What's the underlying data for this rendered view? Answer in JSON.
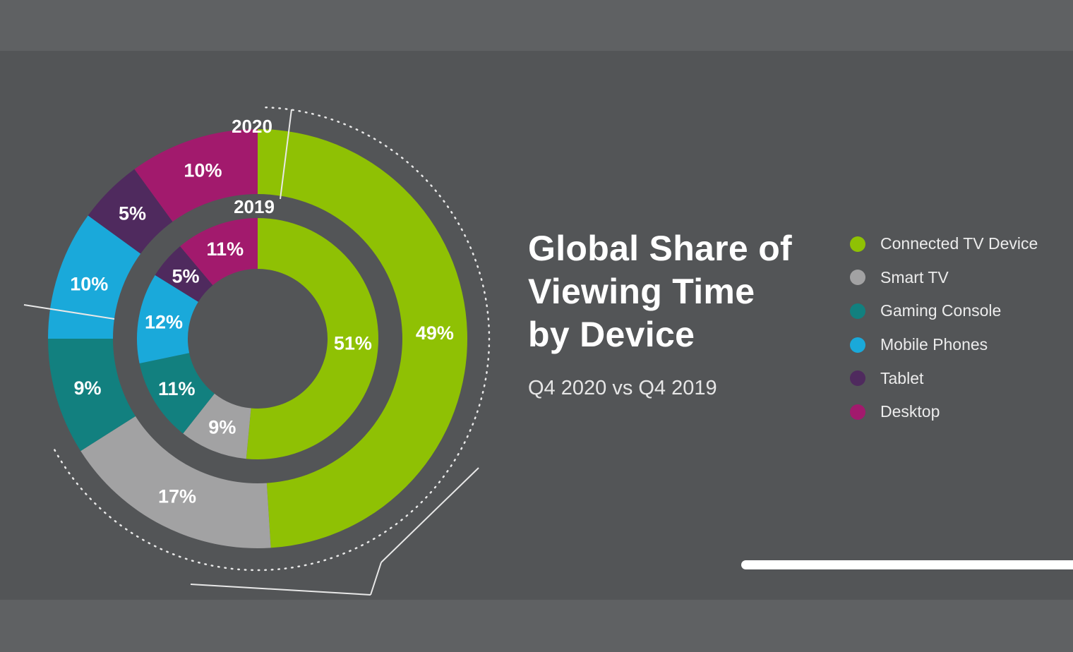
{
  "chart_data": {
    "type": "donut",
    "title_lines": [
      "Global Share of",
      "Viewing Time",
      "by Device"
    ],
    "subtitle": "Q4 2020 vs Q4 2019",
    "categories": [
      "Connected TV Device",
      "Smart TV",
      "Gaming Console",
      "Mobile Phones",
      "Tablet",
      "Desktop"
    ],
    "colors": [
      "#8fc104",
      "#a2a2a3",
      "#12807f",
      "#1aa9da",
      "#4f2a5e",
      "#a21a6d"
    ],
    "series": [
      {
        "name": "2020",
        "values": [
          49,
          17,
          9,
          10,
          5,
          10
        ]
      },
      {
        "name": "2019",
        "values": [
          51,
          9,
          11,
          12,
          5,
          11
        ]
      }
    ],
    "value_suffix": "%",
    "legend_position": "right"
  }
}
